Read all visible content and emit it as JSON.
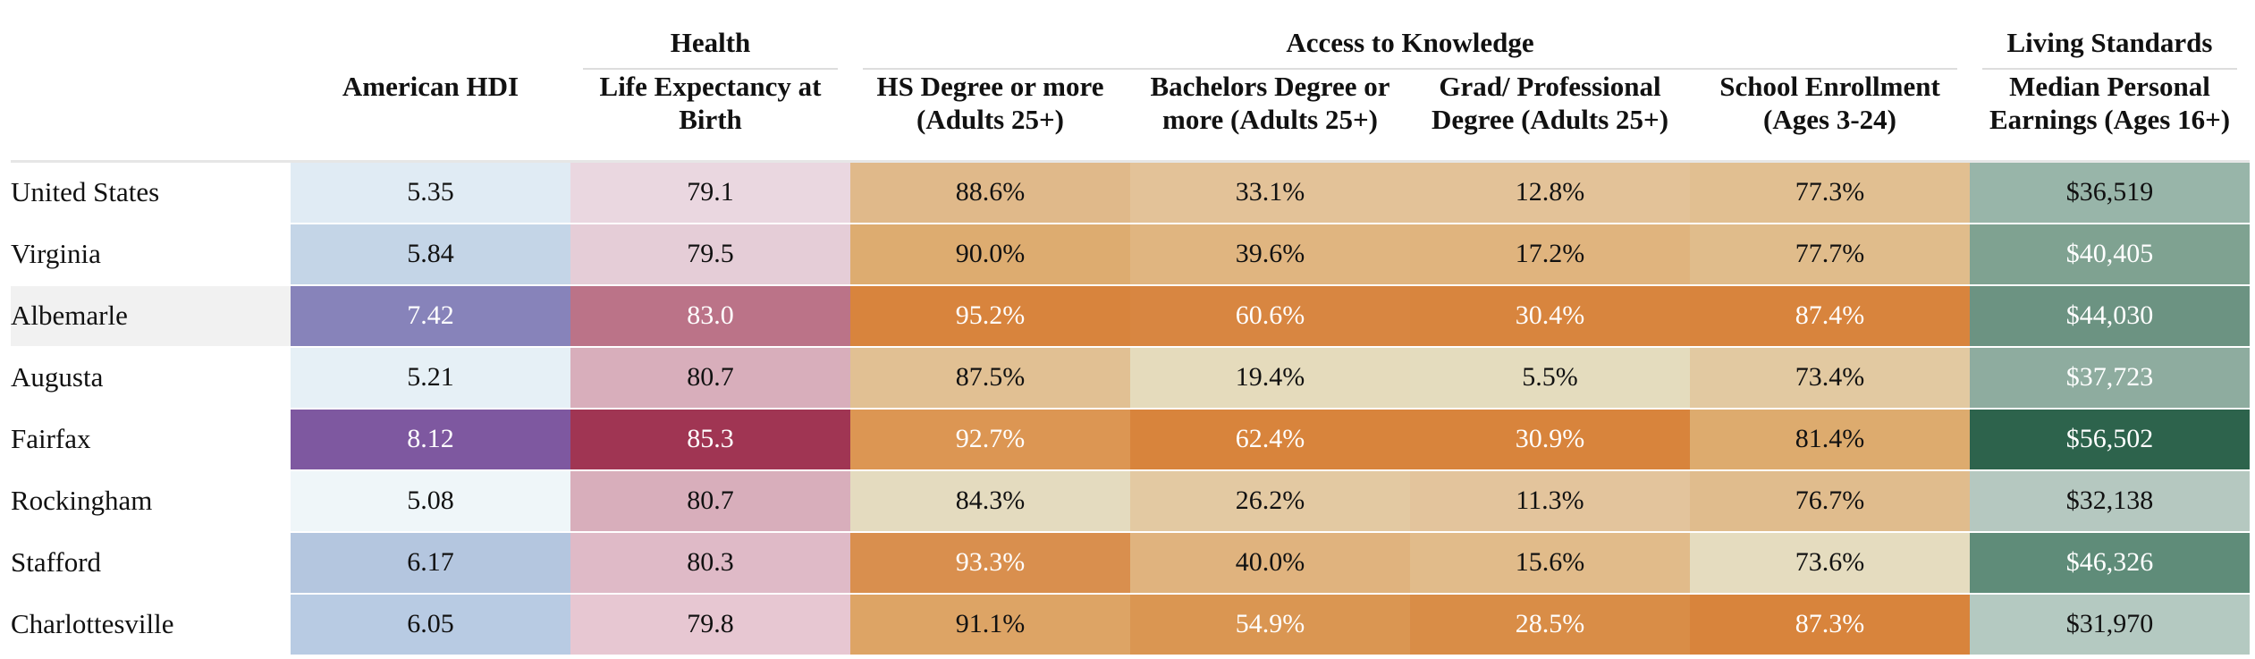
{
  "chart_data": {
    "type": "table",
    "groups": [
      {
        "label": "",
        "span": 2
      },
      {
        "label": "Health",
        "span": 1
      },
      {
        "label": "Access to Knowledge",
        "span": 4
      },
      {
        "label": "Living Standards",
        "span": 1
      }
    ],
    "columns": [
      "",
      "American HDI",
      "Life Expectancy at Birth",
      "HS Degree or more (Adults 25+)",
      "Bachelors Degree or more (Adults 25+)",
      "Grad/ Professional Degree (Adults 25+)",
      "School Enrollment (Ages 3-24)",
      "Median Personal Earnings (Ages 16+)"
    ],
    "rows": [
      {
        "label": "United States",
        "values": [
          "5.35",
          "79.1",
          "88.6%",
          "33.1%",
          "12.8%",
          "77.3%",
          "$36,519"
        ],
        "colors": [
          "#e0ebf4",
          "#ead7e0",
          "#e0b98a",
          "#e3c298",
          "#e3c298",
          "#e1bf91",
          "#98b5a9"
        ]
      },
      {
        "label": "Virginia",
        "values": [
          "5.84",
          "79.5",
          "90.0%",
          "39.6%",
          "17.2%",
          "77.7%",
          "$40,405"
        ],
        "colors": [
          "#c4d5e7",
          "#e5cdd7",
          "#ddac70",
          "#e0b580",
          "#e0b47e",
          "#e0bc8b",
          "#7fa291"
        ]
      },
      {
        "label": "Albemarle",
        "values": [
          "7.42",
          "83.0",
          "95.2%",
          "60.6%",
          "30.4%",
          "87.4%",
          "$44,030"
        ],
        "colors": [
          "#8783ba",
          "#bb7388",
          "#d8843d",
          "#d88641",
          "#d8853e",
          "#d8843d",
          "#6c9382"
        ]
      },
      {
        "label": "Augusta",
        "values": [
          "5.21",
          "80.7",
          "87.5%",
          "19.4%",
          "5.5%",
          "73.4%",
          "$37,723"
        ],
        "colors": [
          "#e6f0f6",
          "#d8aebb",
          "#e1c093",
          "#e5dbbc",
          "#e4dcbe",
          "#e2c9a1",
          "#8eac9f"
        ]
      },
      {
        "label": "Fairfax",
        "values": [
          "8.12",
          "85.3",
          "92.7%",
          "62.4%",
          "30.9%",
          "81.4%",
          "$56,502"
        ],
        "colors": [
          "#7e58a0",
          "#a03553",
          "#dc9653",
          "#d8843c",
          "#d8843c",
          "#ddab6e",
          "#2d634c"
        ]
      },
      {
        "label": "Rockingham",
        "values": [
          "5.08",
          "80.7",
          "84.3%",
          "26.2%",
          "11.3%",
          "76.7%",
          "$32,138"
        ],
        "colors": [
          "#eff6f9",
          "#d8aebb",
          "#e4dbbf",
          "#e3c9a2",
          "#e3c49c",
          "#e0bc8d",
          "#b5c8c0"
        ]
      },
      {
        "label": "Stafford",
        "values": [
          "6.17",
          "80.3",
          "93.3%",
          "40.0%",
          "15.6%",
          "73.6%",
          "$46,326"
        ],
        "colors": [
          "#b4c6df",
          "#dfbac7",
          "#d98f4e",
          "#e0b37e",
          "#e1bb8a",
          "#e5dcbf",
          "#5f8c79"
        ]
      },
      {
        "label": "Charlottesville",
        "values": [
          "6.05",
          "79.8",
          "91.1%",
          "54.9%",
          "28.5%",
          "87.3%",
          "$31,970"
        ],
        "colors": [
          "#b8cbe3",
          "#e7c7d2",
          "#dda465",
          "#da9652",
          "#d98d47",
          "#d8843c",
          "#b4c9c1"
        ]
      }
    ],
    "highlight_row": "Albemarle"
  }
}
